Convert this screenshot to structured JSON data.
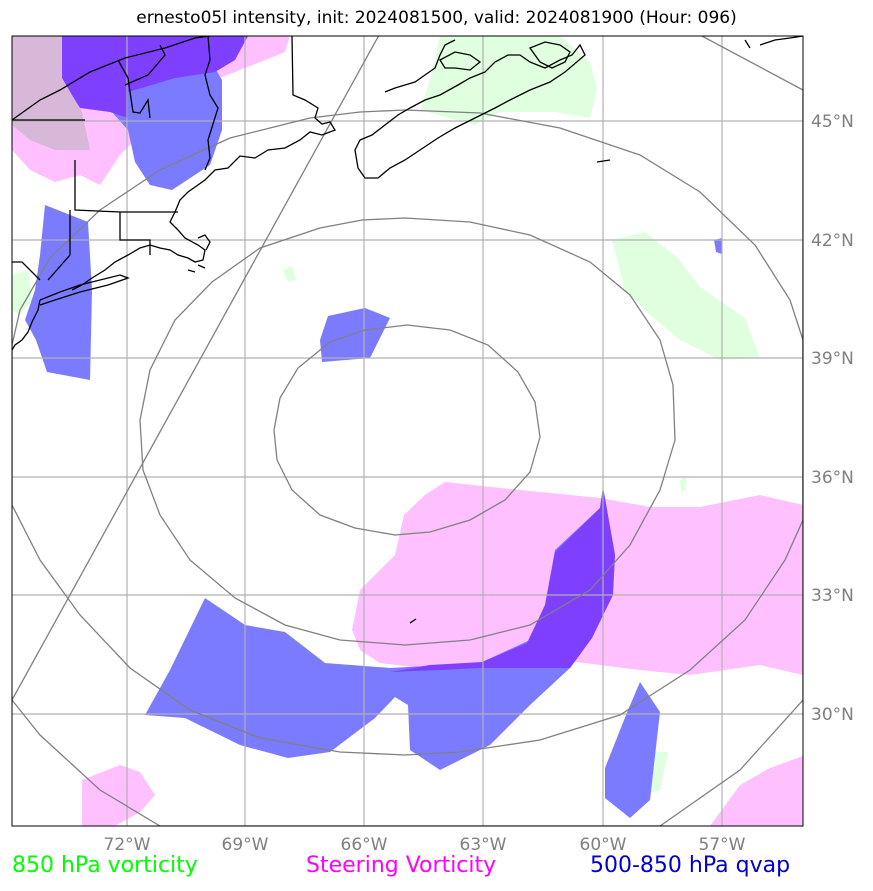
{
  "title": "ernesto05l intensity, init: 2024081500, valid: 2024081900 (Hour: 096)",
  "lon_ticks": [
    "72°W",
    "69°W",
    "66°W",
    "63°W",
    "60°W",
    "57°W"
  ],
  "lat_ticks": [
    "45°N",
    "42°N",
    "39°N",
    "36°N",
    "33°N",
    "30°N"
  ],
  "legend": [
    {
      "label": "850 hPa vorticity",
      "color": "#00ff00"
    },
    {
      "label": "Steering Vorticity",
      "color": "#ff00ff"
    },
    {
      "label": "500-850 hPa qvap",
      "color": "#0000cc"
    }
  ],
  "colors": {
    "vorticity_fill": "#dfffdf",
    "steering_fill": "#ffc0ff",
    "qvap_fill": "#7b7bff",
    "overlap_fill": "#7f3fff",
    "gridline": "#b0b0b0",
    "range_ring": "#808080",
    "coastline": "#000000"
  }
}
